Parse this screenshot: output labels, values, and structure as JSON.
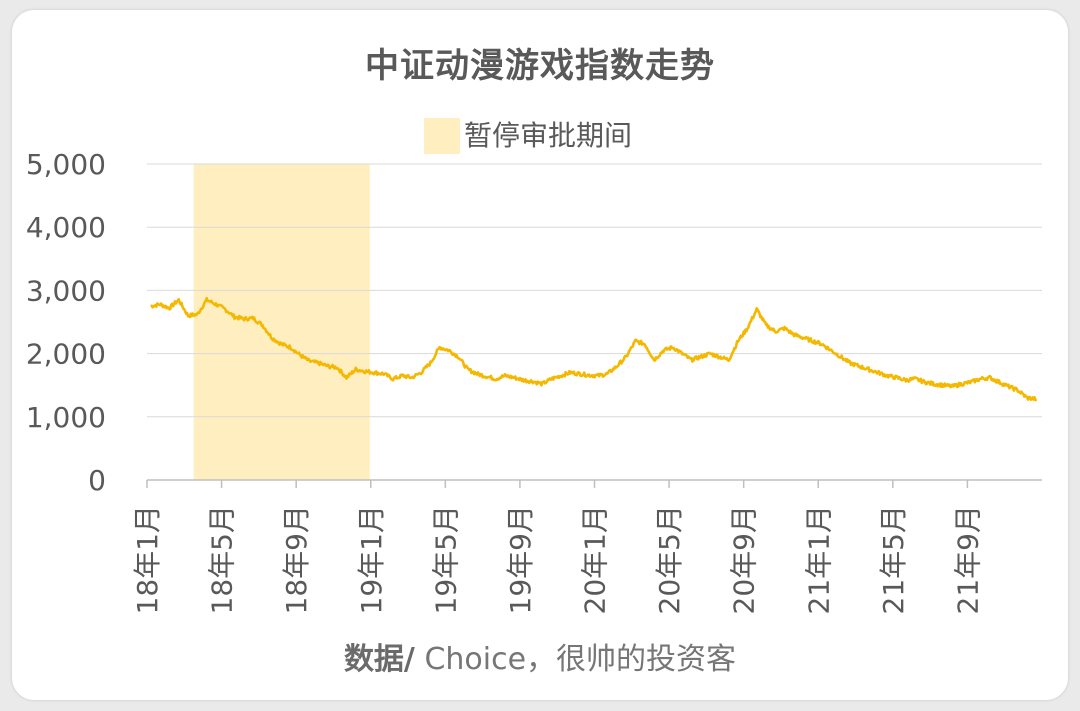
{
  "colors": {
    "series": "#F5B800",
    "band": "#FFEFC0",
    "grid": "#D9D9D9",
    "axis": "#BFBFBF",
    "text": "#595959"
  },
  "source": {
    "bold": "数据/",
    "rest": " Choice，很帅的投资客"
  },
  "chart_data": {
    "type": "line",
    "title": "中证动漫游戏指数走势",
    "legend": [
      {
        "label": "暂停审批期间",
        "kind": "shaded-band",
        "color": "#FFEFC0"
      }
    ],
    "legend_position": "top-center",
    "grid": true,
    "ylim": [
      0,
      5000
    ],
    "yticks": [
      0,
      1000,
      2000,
      3000,
      4000,
      5000
    ],
    "ytick_labels": [
      "0",
      "1,000",
      "2,000",
      "3,000",
      "4,000",
      "5,000"
    ],
    "xlim": [
      "2018-01",
      "2021-12"
    ],
    "xtick_labels": [
      "18年1月",
      "18年5月",
      "18年9月",
      "19年1月",
      "19年5月",
      "19年9月",
      "20年1月",
      "20年5月",
      "20年9月",
      "21年1月",
      "21年5月",
      "21年9月"
    ],
    "x_label_rotation": -90,
    "shaded_region": {
      "label": "暂停审批期间",
      "from": "2018-03",
      "to": "2018-12"
    },
    "series": [
      {
        "x": [
          "2018-01",
          "2018-01",
          "2018-02",
          "2018-02",
          "2018-03",
          "2018-03",
          "2018-04",
          "2018-04",
          "2018-05",
          "2018-05",
          "2018-06",
          "2018-06",
          "2018-07",
          "2018-07",
          "2018-08",
          "2018-08",
          "2018-09",
          "2018-09",
          "2018-10",
          "2018-10",
          "2018-11",
          "2018-11",
          "2018-12",
          "2018-12",
          "2019-01",
          "2019-01",
          "2019-02",
          "2019-02",
          "2019-03",
          "2019-03",
          "2019-04",
          "2019-04",
          "2019-05",
          "2019-05",
          "2019-06",
          "2019-06",
          "2019-07",
          "2019-07",
          "2019-08",
          "2019-08",
          "2019-09",
          "2019-09",
          "2019-10",
          "2019-10",
          "2019-11",
          "2019-11",
          "2019-12",
          "2019-12",
          "2020-01",
          "2020-01",
          "2020-02",
          "2020-02",
          "2020-03",
          "2020-03",
          "2020-04",
          "2020-04",
          "2020-05",
          "2020-05",
          "2020-06",
          "2020-06",
          "2020-07",
          "2020-07",
          "2020-08",
          "2020-08",
          "2020-09",
          "2020-09",
          "2020-10",
          "2020-10",
          "2020-11",
          "2020-11",
          "2020-12",
          "2020-12",
          "2021-01",
          "2021-01",
          "2021-02",
          "2021-02",
          "2021-03",
          "2021-03",
          "2021-04",
          "2021-04",
          "2021-05",
          "2021-05",
          "2021-06",
          "2021-06",
          "2021-07",
          "2021-07",
          "2021-08",
          "2021-08",
          "2021-09",
          "2021-09",
          "2021-10",
          "2021-10",
          "2021-11",
          "2021-11",
          "2021-12",
          "2021-12"
        ],
        "values": [
          2750,
          2780,
          2720,
          2850,
          2600,
          2620,
          2850,
          2780,
          2700,
          2580,
          2550,
          2560,
          2450,
          2250,
          2150,
          2100,
          1980,
          1880,
          1850,
          1800,
          1780,
          1620,
          1750,
          1720,
          1700,
          1680,
          1600,
          1650,
          1620,
          1700,
          1850,
          2100,
          2050,
          1950,
          1750,
          1680,
          1640,
          1600,
          1650,
          1620,
          1580,
          1560,
          1520,
          1600,
          1650,
          1700,
          1680,
          1660,
          1650,
          1680,
          1800,
          1950,
          2200,
          2150,
          1900,
          2050,
          2100,
          2000,
          1900,
          1950,
          2000,
          1950,
          1900,
          2200,
          2400,
          2700,
          2450,
          2350,
          2400,
          2300,
          2250,
          2200,
          2150,
          2050,
          1950,
          1850,
          1800,
          1750,
          1700,
          1650,
          1620,
          1580,
          1600,
          1550,
          1520,
          1500,
          1480,
          1520,
          1550,
          1600,
          1620,
          1550,
          1480,
          1420,
          1300,
          1280
        ]
      }
    ]
  }
}
